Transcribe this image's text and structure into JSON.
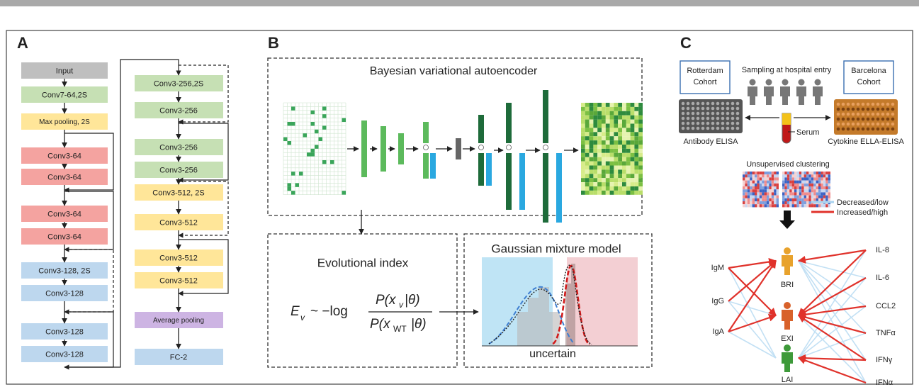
{
  "panel_a": {
    "label": "A",
    "left": [
      "Input",
      "Conv7-64,2S",
      "Max pooling, 2S",
      "Conv3-64",
      "Conv3-64",
      "Conv3-64",
      "Conv3-64",
      "Conv3-128, 2S",
      "Conv3-128",
      "Conv3-128",
      "Conv3-128"
    ],
    "right": [
      "Conv3-256,2S",
      "Conv3-256",
      "Conv3-256",
      "Conv3-256",
      "Conv3-512, 2S",
      "Conv3-512",
      "Conv3-512",
      "Conv3-512",
      "Average pooling",
      "FC-2"
    ]
  },
  "panel_b": {
    "label": "B",
    "vae_title": "Bayesian variational autoencoder",
    "index_title": "Evolutional index",
    "formula": {
      "e": "E",
      "e_sub": "v",
      "rel": "~ −log",
      "num": "P(x",
      "num_sub": "v",
      "num_end": "|θ)",
      "den": "P(x",
      "den_sub": "WT",
      "den_end": "|θ)"
    },
    "gmm_title": "Gaussian mixture model",
    "gmm_note": "uncertain"
  },
  "panel_c": {
    "label": "C",
    "cohort_left": [
      "Rotterdam",
      "Cohort"
    ],
    "cohort_right": [
      "Barcelona",
      "Cohort"
    ],
    "sampling": "Sampling at hospital entry",
    "serum": "Serum",
    "assay_left": "Antibody ELISA",
    "assay_right": "Cytokine ELLA-ELISA",
    "clustering": "Unsupervised clustering",
    "legend": [
      "Decreased/low",
      "Increased/high"
    ],
    "antibodies": [
      "IgM",
      "IgG",
      "IgA"
    ],
    "groups": [
      "BRI",
      "EXI",
      "LAI"
    ],
    "cytokines": [
      "IL-8",
      "IL-6",
      "CCL2",
      "TNFα",
      "IFNγ",
      "IFNα"
    ]
  }
}
